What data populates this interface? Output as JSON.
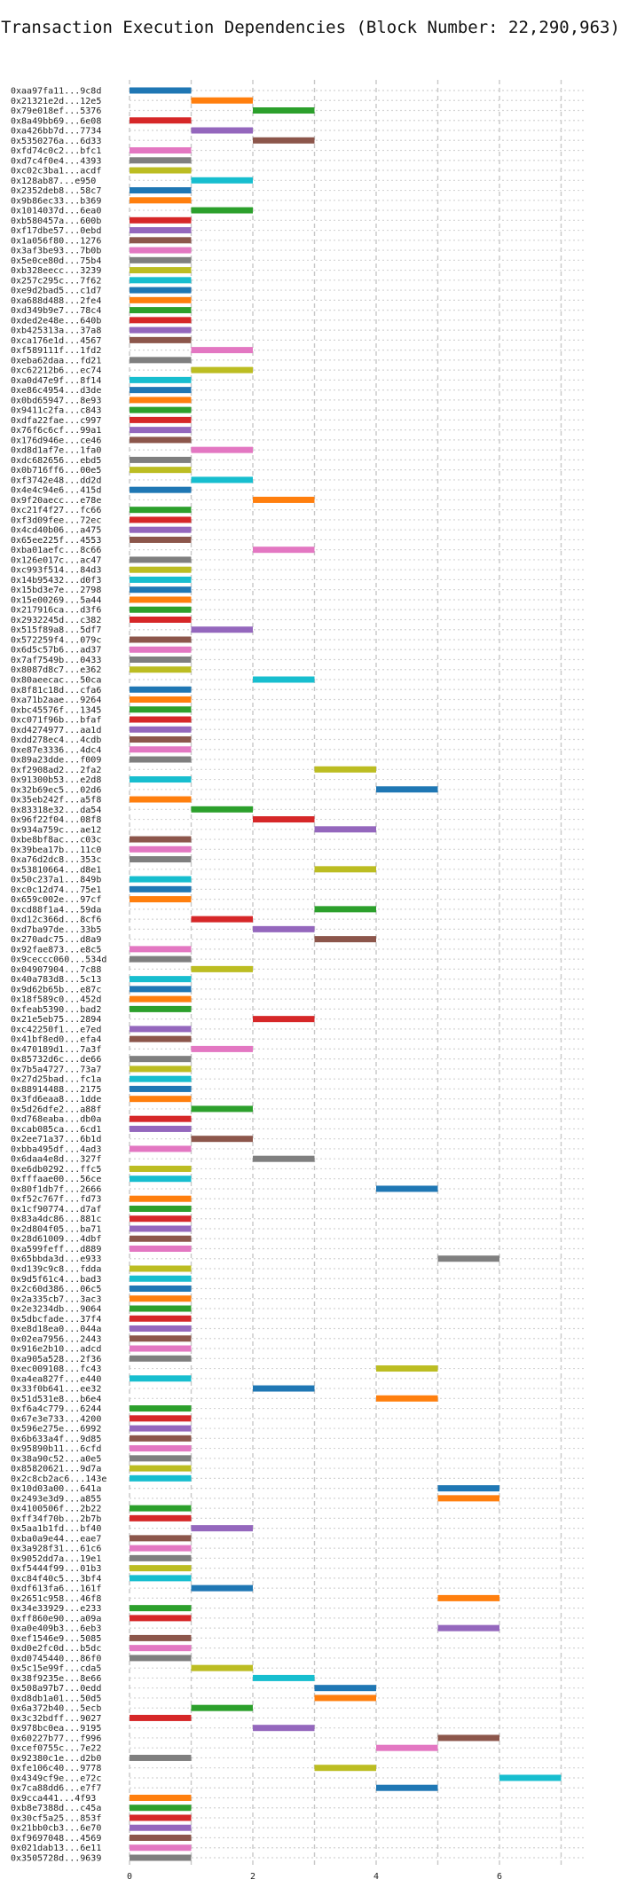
{
  "title": "Transaction Execution Dependencies (Block Number: 22,290,963)",
  "chart_data": {
    "type": "bar",
    "subtype": "horizontal-gantt",
    "title": "Transaction Execution Dependencies (Block Number: 22,290,963)",
    "xlabel": "",
    "ylabel": "",
    "xlim": [
      0,
      7.4
    ],
    "x_ticks": [
      0,
      2,
      4,
      6
    ],
    "grid": "dashed vertical at each integer x, dotted horizontal per row",
    "legend": "none",
    "palette": [
      "#1f77b4",
      "#ff7f0e",
      "#2ca02c",
      "#d62728",
      "#9467bd",
      "#8c564b",
      "#e377c2",
      "#7f7f7f",
      "#bcbd22",
      "#17becf"
    ],
    "rows": [
      {
        "tx": "0xaa97fa11...9c8d",
        "start": 0,
        "color": "#1f77b4"
      },
      {
        "tx": "0x21321e2d...12e5",
        "start": 1,
        "color": "#ff7f0e"
      },
      {
        "tx": "0x79e018ef...5376",
        "start": 2,
        "color": "#2ca02c"
      },
      {
        "tx": "0x8a49bb69...6e08",
        "start": 0,
        "color": "#d62728"
      },
      {
        "tx": "0xa426bb7d...7734",
        "start": 1,
        "color": "#9467bd"
      },
      {
        "tx": "0x5350276a...6d33",
        "start": 2,
        "color": "#8c564b"
      },
      {
        "tx": "0xfd74c0c2...bfc1",
        "start": 0,
        "color": "#e377c2"
      },
      {
        "tx": "0xd7c4f0e4...4393",
        "start": 0,
        "color": "#7f7f7f"
      },
      {
        "tx": "0xc02c3ba1...acdf",
        "start": 0,
        "color": "#bcbd22"
      },
      {
        "tx": "0x128ab87...e950",
        "start": 1,
        "color": "#17becf"
      },
      {
        "tx": "0x2352deb8...58c7",
        "start": 0,
        "color": "#1f77b4"
      },
      {
        "tx": "0x9b86ec33...b369",
        "start": 0,
        "color": "#ff7f0e"
      },
      {
        "tx": "0x1014037d...6ea0",
        "start": 1,
        "color": "#2ca02c"
      },
      {
        "tx": "0xb580457a...600b",
        "start": 0,
        "color": "#d62728"
      },
      {
        "tx": "0xf17dbe57...0ebd",
        "start": 0,
        "color": "#9467bd"
      },
      {
        "tx": "0x1a056f80...1276",
        "start": 0,
        "color": "#8c564b"
      },
      {
        "tx": "0x3af3be93...7b0b",
        "start": 0,
        "color": "#e377c2"
      },
      {
        "tx": "0x5e0ce80d...75b4",
        "start": 0,
        "color": "#7f7f7f"
      },
      {
        "tx": "0xb328eecc...3239",
        "start": 0,
        "color": "#bcbd22"
      },
      {
        "tx": "0x257c295c...7f62",
        "start": 0,
        "color": "#17becf"
      },
      {
        "tx": "0xe9d2bad5...c1d7",
        "start": 0,
        "color": "#1f77b4"
      },
      {
        "tx": "0xa688d488...2fe4",
        "start": 0,
        "color": "#ff7f0e"
      },
      {
        "tx": "0xd349b9e7...78c4",
        "start": 0,
        "color": "#2ca02c"
      },
      {
        "tx": "0xded2e48e...640b",
        "start": 0,
        "color": "#d62728"
      },
      {
        "tx": "0xb425313a...37a8",
        "start": 0,
        "color": "#9467bd"
      },
      {
        "tx": "0xca176e1d...4567",
        "start": 0,
        "color": "#8c564b"
      },
      {
        "tx": "0xf589111f...1fd2",
        "start": 1,
        "color": "#e377c2"
      },
      {
        "tx": "0xeba62daa...fd21",
        "start": 0,
        "color": "#7f7f7f"
      },
      {
        "tx": "0xc62212b6...ec74",
        "start": 1,
        "color": "#bcbd22"
      },
      {
        "tx": "0xa0d47e9f...8f14",
        "start": 0,
        "color": "#17becf"
      },
      {
        "tx": "0xe86c4954...d3de",
        "start": 0,
        "color": "#1f77b4"
      },
      {
        "tx": "0x0bd65947...8e93",
        "start": 0,
        "color": "#ff7f0e"
      },
      {
        "tx": "0x9411c2fa...c843",
        "start": 0,
        "color": "#2ca02c"
      },
      {
        "tx": "0xdfa22fae...c997",
        "start": 0,
        "color": "#d62728"
      },
      {
        "tx": "0x76f6c6cf...99a1",
        "start": 0,
        "color": "#9467bd"
      },
      {
        "tx": "0x176d946e...ce46",
        "start": 0,
        "color": "#8c564b"
      },
      {
        "tx": "0xd8d1af7e...1fa0",
        "start": 1,
        "color": "#e377c2"
      },
      {
        "tx": "0xdc682656...ebd5",
        "start": 0,
        "color": "#7f7f7f"
      },
      {
        "tx": "0x0b716ff6...00e5",
        "start": 0,
        "color": "#bcbd22"
      },
      {
        "tx": "0xf3742e48...dd2d",
        "start": 1,
        "color": "#17becf"
      },
      {
        "tx": "0x4e4c94e6...415d",
        "start": 0,
        "color": "#1f77b4"
      },
      {
        "tx": "0x9f20aecc...e78e",
        "start": 2,
        "color": "#ff7f0e"
      },
      {
        "tx": "0xc21f4f27...fc66",
        "start": 0,
        "color": "#2ca02c"
      },
      {
        "tx": "0xf3d09fee...72ec",
        "start": 0,
        "color": "#d62728"
      },
      {
        "tx": "0x4cd40b06...a475",
        "start": 0,
        "color": "#9467bd"
      },
      {
        "tx": "0x65ee225f...4553",
        "start": 0,
        "color": "#8c564b"
      },
      {
        "tx": "0xba01aefc...8c66",
        "start": 2,
        "color": "#e377c2"
      },
      {
        "tx": "0x126e017c...ac47",
        "start": 0,
        "color": "#7f7f7f"
      },
      {
        "tx": "0xc993f514...84d3",
        "start": 0,
        "color": "#bcbd22"
      },
      {
        "tx": "0x14b95432...d0f3",
        "start": 0,
        "color": "#17becf"
      },
      {
        "tx": "0x15bd3e7e...2798",
        "start": 0,
        "color": "#1f77b4"
      },
      {
        "tx": "0x15e00269...5a44",
        "start": 0,
        "color": "#ff7f0e"
      },
      {
        "tx": "0x217916ca...d3f6",
        "start": 0,
        "color": "#2ca02c"
      },
      {
        "tx": "0x2932245d...c382",
        "start": 0,
        "color": "#d62728"
      },
      {
        "tx": "0x515f89a8...5df7",
        "start": 1,
        "color": "#9467bd"
      },
      {
        "tx": "0x572259f4...079c",
        "start": 0,
        "color": "#8c564b"
      },
      {
        "tx": "0x6d5c57b6...ad37",
        "start": 0,
        "color": "#e377c2"
      },
      {
        "tx": "0x7af7549b...0433",
        "start": 0,
        "color": "#7f7f7f"
      },
      {
        "tx": "0x8087d8c7...e362",
        "start": 0,
        "color": "#bcbd22"
      },
      {
        "tx": "0x80aeecac...50ca",
        "start": 2,
        "color": "#17becf"
      },
      {
        "tx": "0x8f81c18d...cfa6",
        "start": 0,
        "color": "#1f77b4"
      },
      {
        "tx": "0xa71b2aae...9264",
        "start": 0,
        "color": "#ff7f0e"
      },
      {
        "tx": "0xbc45576f...1345",
        "start": 0,
        "color": "#2ca02c"
      },
      {
        "tx": "0xc071f96b...bfaf",
        "start": 0,
        "color": "#d62728"
      },
      {
        "tx": "0xd4274977...aa1d",
        "start": 0,
        "color": "#9467bd"
      },
      {
        "tx": "0xdd278ec4...4cdb",
        "start": 0,
        "color": "#8c564b"
      },
      {
        "tx": "0xe87e3336...4dc4",
        "start": 0,
        "color": "#e377c2"
      },
      {
        "tx": "0x89a23dde...f009",
        "start": 0,
        "color": "#7f7f7f"
      },
      {
        "tx": "0xf2908ad2...2fa2",
        "start": 3,
        "color": "#bcbd22"
      },
      {
        "tx": "0x91300b53...e2d8",
        "start": 0,
        "color": "#17becf"
      },
      {
        "tx": "0x32b69ec5...02d6",
        "start": 4,
        "color": "#1f77b4"
      },
      {
        "tx": "0x35eb242f...a5f8",
        "start": 0,
        "color": "#ff7f0e"
      },
      {
        "tx": "0x83318e32...da54",
        "start": 1,
        "color": "#2ca02c"
      },
      {
        "tx": "0x96f22f04...08f8",
        "start": 2,
        "color": "#d62728"
      },
      {
        "tx": "0x934a759c...ae12",
        "start": 3,
        "color": "#9467bd"
      },
      {
        "tx": "0xbe8bf8ac...c03c",
        "start": 0,
        "color": "#8c564b"
      },
      {
        "tx": "0x39bea17b...11c0",
        "start": 0,
        "color": "#e377c2"
      },
      {
        "tx": "0xa76d2dc8...353c",
        "start": 0,
        "color": "#7f7f7f"
      },
      {
        "tx": "0x53810664...d8e1",
        "start": 3,
        "color": "#bcbd22"
      },
      {
        "tx": "0x50c237a1...849b",
        "start": 0,
        "color": "#17becf"
      },
      {
        "tx": "0xc0c12d74...75e1",
        "start": 0,
        "color": "#1f77b4"
      },
      {
        "tx": "0x659c002e...97cf",
        "start": 0,
        "color": "#ff7f0e"
      },
      {
        "tx": "0xcd88f1a4...59da",
        "start": 3,
        "color": "#2ca02c"
      },
      {
        "tx": "0xd12c366d...8cf6",
        "start": 1,
        "color": "#d62728"
      },
      {
        "tx": "0xd7ba97de...33b5",
        "start": 2,
        "color": "#9467bd"
      },
      {
        "tx": "0x270adc75...d8a9",
        "start": 3,
        "color": "#8c564b"
      },
      {
        "tx": "0x92fae873...e8c5",
        "start": 0,
        "color": "#e377c2"
      },
      {
        "tx": "0x9ceccc060...534d",
        "start": 0,
        "color": "#7f7f7f"
      },
      {
        "tx": "0x04907904...7c88",
        "start": 1,
        "color": "#bcbd22"
      },
      {
        "tx": "0x40a783d8...5c13",
        "start": 0,
        "color": "#17becf"
      },
      {
        "tx": "0x9d62b65b...e87c",
        "start": 0,
        "color": "#1f77b4"
      },
      {
        "tx": "0x18f589c0...452d",
        "start": 0,
        "color": "#ff7f0e"
      },
      {
        "tx": "0xfeab5390...bad2",
        "start": 0,
        "color": "#2ca02c"
      },
      {
        "tx": "0x21e5eb75...2894",
        "start": 2,
        "color": "#d62728"
      },
      {
        "tx": "0xc42250f1...e7ed",
        "start": 0,
        "color": "#9467bd"
      },
      {
        "tx": "0x41bf8ed0...efa4",
        "start": 0,
        "color": "#8c564b"
      },
      {
        "tx": "0x470189d1...7a3f",
        "start": 1,
        "color": "#e377c2"
      },
      {
        "tx": "0x85732d6c...de66",
        "start": 0,
        "color": "#7f7f7f"
      },
      {
        "tx": "0x7b5a4727...73a7",
        "start": 0,
        "color": "#bcbd22"
      },
      {
        "tx": "0x27d25bad...fc1a",
        "start": 0,
        "color": "#17becf"
      },
      {
        "tx": "0x88914488...2175",
        "start": 0,
        "color": "#1f77b4"
      },
      {
        "tx": "0x3fd6eaa8...1dde",
        "start": 0,
        "color": "#ff7f0e"
      },
      {
        "tx": "0x5d26dfe2...a88f",
        "start": 1,
        "color": "#2ca02c"
      },
      {
        "tx": "0xd768eaba...db0a",
        "start": 0,
        "color": "#d62728"
      },
      {
        "tx": "0xcab085ca...6cd1",
        "start": 0,
        "color": "#9467bd"
      },
      {
        "tx": "0x2ee71a37...6b1d",
        "start": 1,
        "color": "#8c564b"
      },
      {
        "tx": "0xbba495df...4ad3",
        "start": 0,
        "color": "#e377c2"
      },
      {
        "tx": "0x6daa4e8d...327f",
        "start": 2,
        "color": "#7f7f7f"
      },
      {
        "tx": "0xe6db0292...ffc5",
        "start": 0,
        "color": "#bcbd22"
      },
      {
        "tx": "0xfffaae00...56ce",
        "start": 0,
        "color": "#17becf"
      },
      {
        "tx": "0x80f1db7f...2666",
        "start": 4,
        "color": "#1f77b4"
      },
      {
        "tx": "0xf52c767f...fd73",
        "start": 0,
        "color": "#ff7f0e"
      },
      {
        "tx": "0x1cf90774...d7af",
        "start": 0,
        "color": "#2ca02c"
      },
      {
        "tx": "0x83a4dc86...881c",
        "start": 0,
        "color": "#d62728"
      },
      {
        "tx": "0x2d804f05...ba71",
        "start": 0,
        "color": "#9467bd"
      },
      {
        "tx": "0x28d61009...4dbf",
        "start": 0,
        "color": "#8c564b"
      },
      {
        "tx": "0xa599feff...d889",
        "start": 0,
        "color": "#e377c2"
      },
      {
        "tx": "0x65bbda3d...e933",
        "start": 5,
        "color": "#7f7f7f"
      },
      {
        "tx": "0xd139c9c8...fdda",
        "start": 0,
        "color": "#bcbd22"
      },
      {
        "tx": "0x9d5f61c4...bad3",
        "start": 0,
        "color": "#17becf"
      },
      {
        "tx": "0x2c60d386...06c5",
        "start": 0,
        "color": "#1f77b4"
      },
      {
        "tx": "0x2a335cb7...3ac3",
        "start": 0,
        "color": "#ff7f0e"
      },
      {
        "tx": "0x2e3234db...9064",
        "start": 0,
        "color": "#2ca02c"
      },
      {
        "tx": "0x5dbcfade...37f4",
        "start": 0,
        "color": "#d62728"
      },
      {
        "tx": "0xe8d18ea0...044a",
        "start": 0,
        "color": "#9467bd"
      },
      {
        "tx": "0x02ea7956...2443",
        "start": 0,
        "color": "#8c564b"
      },
      {
        "tx": "0x916e2b10...adcd",
        "start": 0,
        "color": "#e377c2"
      },
      {
        "tx": "0xa905a528...2f36",
        "start": 0,
        "color": "#7f7f7f"
      },
      {
        "tx": "0xec009108...fc43",
        "start": 4,
        "color": "#bcbd22"
      },
      {
        "tx": "0xa4ea827f...e440",
        "start": 0,
        "color": "#17becf"
      },
      {
        "tx": "0x33f0b641...ee32",
        "start": 2,
        "color": "#1f77b4"
      },
      {
        "tx": "0x51d531e8...b6e4",
        "start": 4,
        "color": "#ff7f0e"
      },
      {
        "tx": "0xf6a4c779...6244",
        "start": 0,
        "color": "#2ca02c"
      },
      {
        "tx": "0x67e3e733...4200",
        "start": 0,
        "color": "#d62728"
      },
      {
        "tx": "0x596e275e...6992",
        "start": 0,
        "color": "#9467bd"
      },
      {
        "tx": "0x6b633a4f...9d85",
        "start": 0,
        "color": "#8c564b"
      },
      {
        "tx": "0x95890b11...6cfd",
        "start": 0,
        "color": "#e377c2"
      },
      {
        "tx": "0x38a90c52...a0e5",
        "start": 0,
        "color": "#7f7f7f"
      },
      {
        "tx": "0x85820621...9d7a",
        "start": 0,
        "color": "#bcbd22"
      },
      {
        "tx": "0x2c8cb2ac6...143e",
        "start": 0,
        "color": "#17becf"
      },
      {
        "tx": "0x10d03a00...641a",
        "start": 5,
        "color": "#1f77b4"
      },
      {
        "tx": "0x2493e3d9...a855",
        "start": 5,
        "color": "#ff7f0e"
      },
      {
        "tx": "0x4100506f...2b22",
        "start": 0,
        "color": "#2ca02c"
      },
      {
        "tx": "0xff34f70b...2b7b",
        "start": 0,
        "color": "#d62728"
      },
      {
        "tx": "0x5aa1b1fd...bf40",
        "start": 1,
        "color": "#9467bd"
      },
      {
        "tx": "0xba0a9e44...eae7",
        "start": 0,
        "color": "#8c564b"
      },
      {
        "tx": "0x3a928f31...61c6",
        "start": 0,
        "color": "#e377c2"
      },
      {
        "tx": "0x9052dd7a...19e1",
        "start": 0,
        "color": "#7f7f7f"
      },
      {
        "tx": "0xf5444f99...01b3",
        "start": 0,
        "color": "#bcbd22"
      },
      {
        "tx": "0xc84f40c5...3bf4",
        "start": 0,
        "color": "#17becf"
      },
      {
        "tx": "0xdf613fa6...161f",
        "start": 1,
        "color": "#1f77b4"
      },
      {
        "tx": "0x2651c958...46f8",
        "start": 5,
        "color": "#ff7f0e"
      },
      {
        "tx": "0x34e33929...e233",
        "start": 0,
        "color": "#2ca02c"
      },
      {
        "tx": "0xff860e90...a09a",
        "start": 0,
        "color": "#d62728"
      },
      {
        "tx": "0xa0e409b3...6eb3",
        "start": 5,
        "color": "#9467bd"
      },
      {
        "tx": "0xef1546e9...5085",
        "start": 0,
        "color": "#8c564b"
      },
      {
        "tx": "0xd0e2fc0d...b5dc",
        "start": 0,
        "color": "#e377c2"
      },
      {
        "tx": "0xd0745440...86f0",
        "start": 0,
        "color": "#7f7f7f"
      },
      {
        "tx": "0x5c15e99f...cda5",
        "start": 1,
        "color": "#bcbd22"
      },
      {
        "tx": "0x38f9235e...8e66",
        "start": 2,
        "color": "#17becf"
      },
      {
        "tx": "0x508a97b7...0edd",
        "start": 3,
        "color": "#1f77b4"
      },
      {
        "tx": "0xd8db1a01...50d5",
        "start": 3,
        "color": "#ff7f0e"
      },
      {
        "tx": "0x6a372b40...5ecb",
        "start": 1,
        "color": "#2ca02c"
      },
      {
        "tx": "0x3c32bdff...9027",
        "start": 0,
        "color": "#d62728"
      },
      {
        "tx": "0x978bc0ea...9195",
        "start": 2,
        "color": "#9467bd"
      },
      {
        "tx": "0x60227b77...f996",
        "start": 5,
        "color": "#8c564b"
      },
      {
        "tx": "0xcef0755c...7e22",
        "start": 4,
        "color": "#e377c2"
      },
      {
        "tx": "0x92380c1e...d2b0",
        "start": 0,
        "color": "#7f7f7f"
      },
      {
        "tx": "0xfe106c40...9778",
        "start": 3,
        "color": "#bcbd22"
      },
      {
        "tx": "0x4349cf9e...e72c",
        "start": 6,
        "color": "#17becf"
      },
      {
        "tx": "0x7ca88dd6...e7f7",
        "start": 4,
        "color": "#1f77b4"
      },
      {
        "tx": "0x9cca441...4f93",
        "start": 0,
        "color": "#ff7f0e"
      },
      {
        "tx": "0xb8e7388d...c45a",
        "start": 0,
        "color": "#2ca02c"
      },
      {
        "tx": "0x30cf5a25...853f",
        "start": 0,
        "color": "#d62728"
      },
      {
        "tx": "0x21bb0cb3...6e70",
        "start": 0,
        "color": "#9467bd"
      },
      {
        "tx": "0xf9697048...4569",
        "start": 0,
        "color": "#8c564b"
      },
      {
        "tx": "0x021dab13...6e11",
        "start": 0,
        "color": "#e377c2"
      },
      {
        "tx": "0x3505728d...9639",
        "start": 0,
        "color": "#7f7f7f"
      }
    ]
  }
}
